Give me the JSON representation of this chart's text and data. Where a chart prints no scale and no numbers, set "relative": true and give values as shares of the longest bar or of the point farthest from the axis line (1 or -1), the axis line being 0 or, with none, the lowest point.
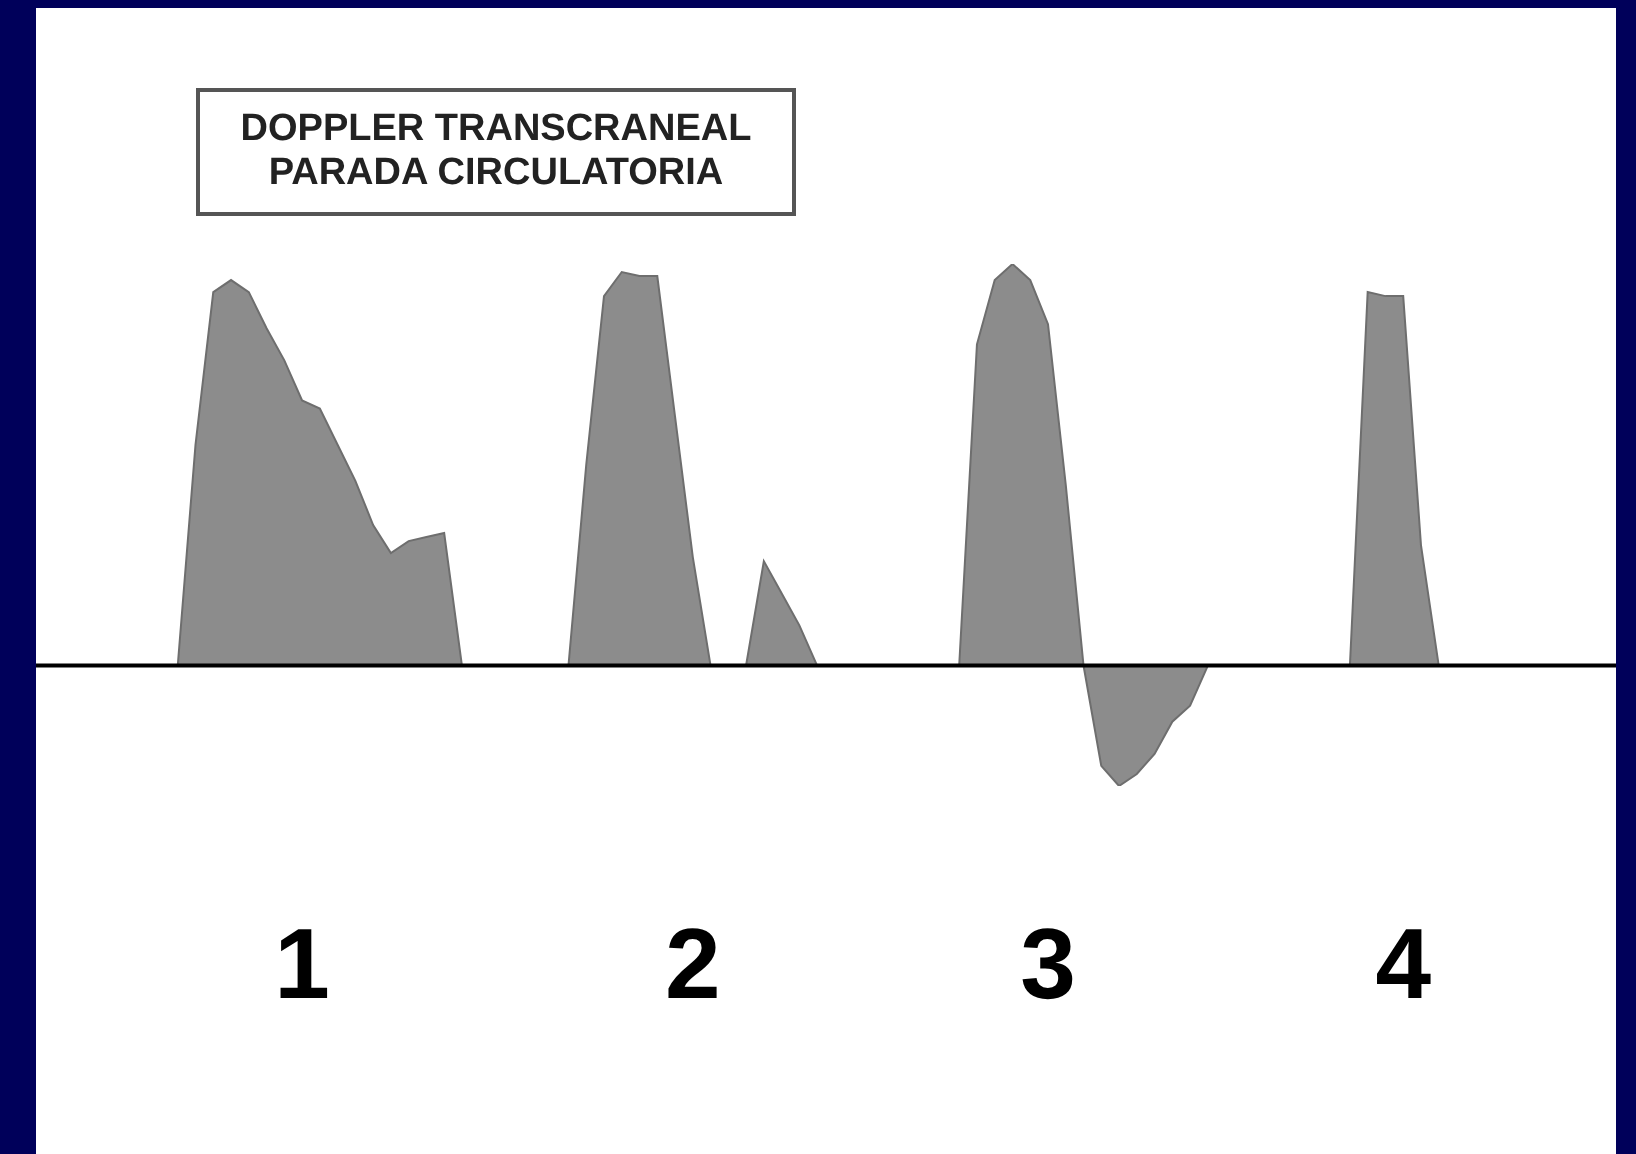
{
  "chart_data": {
    "type": "area",
    "title": "DOPPLER TRANSCRANEAL\nPARADA CIRCULATORIA",
    "relative": true,
    "color": "#8c8c8c",
    "categories": [
      null,
      null,
      null,
      null,
      null,
      null,
      null,
      null,
      "1",
      null,
      null,
      null,
      null,
      null,
      null,
      null,
      null,
      null,
      null,
      null,
      null,
      null,
      null,
      null,
      null,
      null,
      null,
      null,
      null,
      null,
      "2",
      null,
      null,
      null,
      null,
      null,
      null,
      null,
      null,
      null,
      null,
      null,
      null,
      null,
      null,
      null,
      null,
      null,
      null,
      null,
      "3",
      null,
      null,
      null,
      null,
      null,
      null,
      null,
      null,
      null,
      null,
      null,
      null,
      null,
      null,
      null,
      null,
      null,
      null,
      null,
      "4",
      null,
      null,
      null,
      null,
      null
    ],
    "values": [
      null,
      0,
      0.55,
      0.93,
      0.96,
      0.93,
      0.84,
      0.76,
      0.66,
      0.64,
      0.55,
      0.46,
      0.35,
      0.28,
      0.31,
      0.32,
      0.33,
      0,
      null,
      null,
      null,
      null,
      null,
      0,
      0.5,
      0.92,
      0.98,
      0.97,
      0.97,
      0.62,
      0.27,
      0,
      null,
      0,
      0.26,
      0.18,
      0.1,
      0,
      null,
      null,
      null,
      null,
      null,
      null,
      null,
      0,
      0.8,
      0.96,
      1,
      0.96,
      0.85,
      0.45,
      0,
      -0.25,
      -0.3,
      -0.27,
      -0.22,
      -0.14,
      -0.1,
      0,
      null,
      null,
      null,
      null,
      null,
      null,
      null,
      0,
      0.93,
      0.92,
      0.92,
      0.3,
      0,
      null,
      null,
      null
    ],
    "grid": false,
    "legend": false
  }
}
